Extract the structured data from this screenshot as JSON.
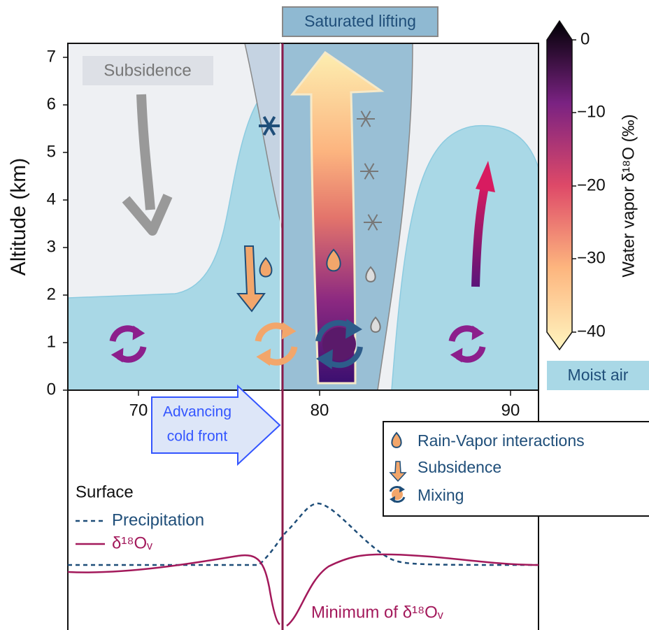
{
  "title": "Saturated lifting",
  "y_axis": {
    "label": "Altitude (km)",
    "ticks": [
      "0",
      "1",
      "2",
      "3",
      "4",
      "5",
      "6",
      "7"
    ]
  },
  "x_axis": {
    "ticks": [
      "70",
      "80",
      "90"
    ]
  },
  "labels": {
    "subsidence": "Subsidence",
    "moist_air": "Moist air",
    "cold_front": [
      "Advancing",
      "cold front"
    ],
    "minimum": "Minimum of δ¹⁸Oᵥ"
  },
  "colorbar": {
    "label": "Water vapor δ¹⁸O (‰)",
    "ticks": [
      "0",
      "−10",
      "−20",
      "−30",
      "−40"
    ]
  },
  "legend": [
    "Rain-Vapor interactions",
    "Subsidence",
    "Mixing"
  ],
  "surface": {
    "title": "Surface",
    "items": [
      "Precipitation",
      "δ¹⁸Oᵥ"
    ]
  }
}
